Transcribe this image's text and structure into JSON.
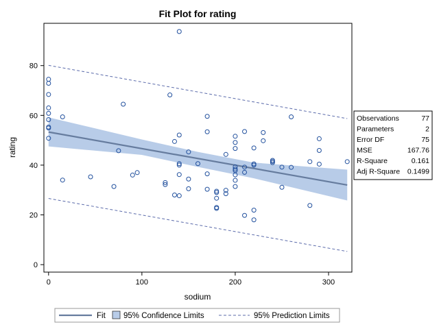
{
  "chart_data": {
    "type": "scatter",
    "title": "Fit Plot for rating",
    "xlabel": "sodium",
    "ylabel": "rating",
    "xlim": [
      -5,
      325
    ],
    "ylim": [
      -3,
      97
    ],
    "xticks": [
      0,
      100,
      200,
      300
    ],
    "yticks": [
      0,
      20,
      40,
      60,
      80
    ],
    "grid": false,
    "colors": {
      "points": "#1f4e9c",
      "fit_line": "#667c9e",
      "confidence_band": "#b8cce8",
      "prediction_line": "#5a6aaa"
    },
    "series": [
      {
        "name": "rating",
        "points": [
          [
            0,
            74.5
          ],
          [
            0,
            72.9
          ],
          [
            0,
            68.4
          ],
          [
            0,
            63.0
          ],
          [
            0,
            60.8
          ],
          [
            0,
            58.3
          ],
          [
            0,
            55.3
          ],
          [
            0,
            54.9
          ],
          [
            0,
            50.8
          ],
          [
            15,
            59.4
          ],
          [
            15,
            34.0
          ],
          [
            45,
            35.3
          ],
          [
            70,
            31.4
          ],
          [
            75,
            45.8
          ],
          [
            80,
            64.5
          ],
          [
            90,
            36.0
          ],
          [
            95,
            37.0
          ],
          [
            125,
            33.0
          ],
          [
            125,
            32.2
          ],
          [
            130,
            68.2
          ],
          [
            135,
            49.5
          ],
          [
            135,
            28.0
          ],
          [
            140,
            93.7
          ],
          [
            140,
            52.1
          ],
          [
            140,
            40.6
          ],
          [
            140,
            40.0
          ],
          [
            140,
            36.2
          ],
          [
            140,
            27.7
          ],
          [
            150,
            45.3
          ],
          [
            150,
            34.4
          ],
          [
            150,
            30.5
          ],
          [
            160,
            40.6
          ],
          [
            170,
            59.6
          ],
          [
            170,
            53.4
          ],
          [
            170,
            36.5
          ],
          [
            170,
            30.3
          ],
          [
            180,
            29.5
          ],
          [
            180,
            29.0
          ],
          [
            180,
            26.7
          ],
          [
            180,
            23.0
          ],
          [
            180,
            22.6
          ],
          [
            190,
            44.3
          ],
          [
            190,
            29.9
          ],
          [
            190,
            28.5
          ],
          [
            200,
            51.6
          ],
          [
            200,
            49.1
          ],
          [
            200,
            46.7
          ],
          [
            200,
            39.3
          ],
          [
            200,
            38.4
          ],
          [
            200,
            37.8
          ],
          [
            200,
            36.1
          ],
          [
            200,
            33.9
          ],
          [
            200,
            31.4
          ],
          [
            210,
            53.5
          ],
          [
            210,
            39.2
          ],
          [
            210,
            37.1
          ],
          [
            210,
            19.8
          ],
          [
            220,
            46.9
          ],
          [
            220,
            40.5
          ],
          [
            220,
            40.0
          ],
          [
            220,
            21.9
          ],
          [
            220,
            18.0
          ],
          [
            230,
            53.1
          ],
          [
            230,
            49.8
          ],
          [
            240,
            41.9
          ],
          [
            240,
            41.5
          ],
          [
            240,
            41.0
          ],
          [
            250,
            39.2
          ],
          [
            250,
            31.1
          ],
          [
            260,
            59.4
          ],
          [
            260,
            39.1
          ],
          [
            280,
            41.4
          ],
          [
            280,
            23.8
          ],
          [
            290,
            50.6
          ],
          [
            290,
            45.9
          ],
          [
            290,
            40.4
          ],
          [
            320,
            41.4
          ]
        ]
      },
      {
        "name": "Fit",
        "x": [
          0,
          320
        ],
        "y": [
          53.3,
          32.0
        ]
      },
      {
        "name": "95% Confidence Limits",
        "x": [
          0,
          100,
          160,
          220,
          320
        ],
        "lower": [
          47.5,
          44.1,
          39.3,
          34.7,
          25.8
        ],
        "upper": [
          59.2,
          50.3,
          45.3,
          41.0,
          38.2
        ]
      },
      {
        "name": "95% Prediction Limits",
        "x": [
          0,
          320
        ],
        "lower": [
          26.6,
          5.3
        ],
        "upper": [
          80.1,
          58.7
        ]
      }
    ],
    "fit_stats": [
      {
        "label": "Observations",
        "value": "77"
      },
      {
        "label": "Parameters",
        "value": "2"
      },
      {
        "label": "Error DF",
        "value": "75"
      },
      {
        "label": "MSE",
        "value": "167.76"
      },
      {
        "label": "R-Square",
        "value": "0.161"
      },
      {
        "label": "Adj R-Square",
        "value": "0.1499"
      }
    ],
    "legend": {
      "position": "bottom",
      "items": [
        {
          "label": "Fit",
          "kind": "line"
        },
        {
          "label": "95% Confidence Limits",
          "kind": "band"
        },
        {
          "label": "95% Prediction Limits",
          "kind": "dashed"
        }
      ]
    }
  }
}
